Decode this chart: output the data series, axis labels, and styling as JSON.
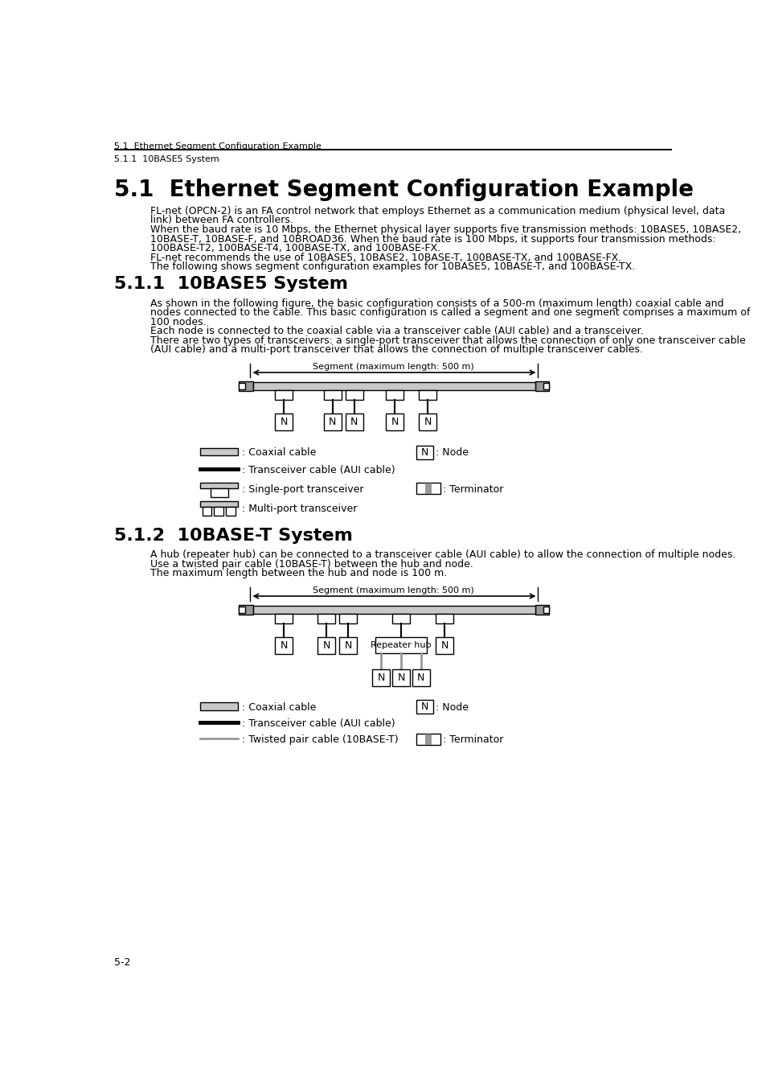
{
  "page_header_left": "5.1  Ethernet Segment Configuration Example",
  "page_subheader": "5.1.1  10BASE5 System",
  "page_footer": "5-2",
  "section_title": "5.1  Ethernet Segment Configuration Example",
  "section_body": [
    "FL-net (OPCN-2) is an FA control network that employs Ethernet as a communication medium (physical level, data",
    "link) between FA controllers.",
    "When the baud rate is 10 Mbps, the Ethernet physical layer supports five transmission methods: 10BASE5, 10BASE2,",
    "10BASE-T, 10BASE-F, and 10BROAD36. When the baud rate is 100 Mbps, it supports four transmission methods:",
    "100BASE-T2, 100BASE-T4, 100BASE-TX, and 100BASE-FX.",
    "FL-net recommends the use of 10BASE5, 10BASE2, 10BASE-T, 100BASE-TX, and 100BASE-FX.",
    "The following shows segment configuration examples for 10BASE5, 10BASE-T, and 100BASE-TX."
  ],
  "sub_title1": "5.1.1  10BASE5 System",
  "sub_body1": [
    "As shown in the following figure, the basic configuration consists of a 500-m (maximum length) coaxial cable and",
    "nodes connected to the cable. This basic configuration is called a segment and one segment comprises a maximum of",
    "100 nodes.",
    "Each node is connected to the coaxial cable via a transceiver cable (AUI cable) and a transceiver.",
    "There are two types of transceivers: a single-port transceiver that allows the connection of only one transceiver cable",
    "(AUI cable) and a multi-port transceiver that allows the connection of multiple transceiver cables."
  ],
  "sub_title2": "5.1.2  10BASE-T System",
  "sub_body2": [
    "A hub (repeater hub) can be connected to a transceiver cable (AUI cable) to allow the connection of multiple nodes.",
    "Use a twisted pair cable (10BASE-T) between the hub and node.",
    "The maximum length between the hub and node is 100 m."
  ],
  "diag_segment_label": "Segment (maximum length: 500 m)",
  "hub_label": "Repeater hub",
  "node_label": "N",
  "legend1": [
    ": Coaxial cable",
    ": Transceiver cable (AUI cable)",
    ": Single-port transceiver",
    ": Multi-port transceiver"
  ],
  "legend1_right": [
    ": Node",
    ": Terminator"
  ],
  "legend2": [
    ": Coaxial cable",
    ": Transceiver cable (AUI cable)",
    ": Twisted pair cable (10BASE-T)"
  ],
  "legend2_right": [
    ": Node",
    ": Terminator"
  ],
  "gray_light": "#c8c8c8",
  "gray_mid": "#989898",
  "white": "#ffffff",
  "black": "#000000"
}
